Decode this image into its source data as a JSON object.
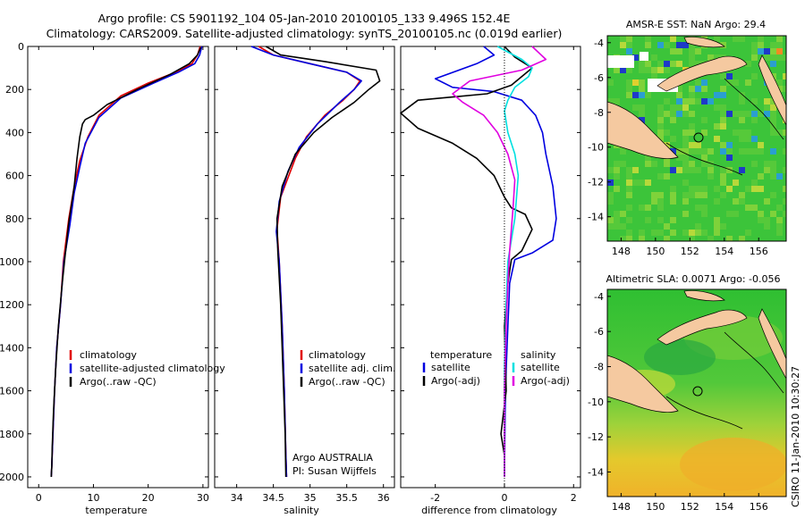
{
  "header": {
    "line1": "Argo profile: CS 5901192_104 05-Jan-2010 20100105_133 9.496S 152.4E",
    "line2": "Climatology: CARS2009. Satellite-adjusted climatology: synTS_20100105.nc (0.019d earlier)"
  },
  "side_label": "CSIRO 11-Jan-2010 10:30:27",
  "colors": {
    "red": "#e00000",
    "blue": "#0000e0",
    "black": "#000000",
    "cyan": "#00e0e0",
    "magenta": "#e000e0"
  },
  "panels": {
    "temperature": {
      "xlabel": "temperature",
      "legend": [
        "climatology",
        "satellite-adjusted climatology",
        "Argo(..raw -QC)"
      ]
    },
    "salinity": {
      "xlabel": "salinity",
      "legend": [
        "climatology",
        "satellite adj. clim.",
        "Argo(..raw -QC)"
      ],
      "note1": "Argo AUSTRALIA",
      "note2": "PI: Susan Wijffels"
    },
    "difference": {
      "xlabel": "difference from climatology",
      "legend_head_left": "temperature",
      "legend_head_right": "salinity",
      "legend_left": [
        "satellite",
        "Argo(-adj)"
      ],
      "legend_right": [
        "satellite",
        "Argo(-adj)"
      ]
    }
  },
  "maps": {
    "sst": {
      "title": "AMSR-E SST: NaN Argo: 29.4"
    },
    "sla": {
      "title": "Altimetric SLA: 0.0071 Argo: -0.056"
    }
  },
  "chart_data": [
    {
      "type": "line",
      "name": "temperature",
      "xlabel": "temperature",
      "ylabel": "",
      "xlim": [
        -2,
        31
      ],
      "ylim": [
        2050,
        0
      ],
      "xticks": [
        0,
        10,
        20,
        30
      ],
      "yticks": [
        0,
        200,
        400,
        600,
        800,
        1000,
        1200,
        1400,
        1600,
        1800,
        2000
      ],
      "legend_location": "lower-right",
      "series": [
        {
          "name": "climatology",
          "color": "#e00000",
          "x": [
            29.5,
            29,
            28,
            25,
            20,
            15,
            11,
            9,
            7.5,
            6.5,
            5.5,
            4.5,
            4,
            3.3,
            2.9,
            2.6,
            2.4,
            2.3
          ],
          "y": [
            0,
            40,
            80,
            120,
            170,
            230,
            320,
            420,
            530,
            650,
            800,
            1000,
            1200,
            1400,
            1600,
            1800,
            1950,
            2000
          ]
        },
        {
          "name": "satellite-adjusted climatology",
          "color": "#0000e0",
          "x": [
            29.8,
            29.4,
            28.5,
            25.5,
            21,
            15,
            11,
            8.5,
            7.5,
            6.5,
            5.7,
            4.6,
            4,
            3.3,
            2.9,
            2.6,
            2.4,
            2.3
          ],
          "y": [
            0,
            40,
            80,
            120,
            170,
            240,
            330,
            450,
            560,
            680,
            830,
            1000,
            1200,
            1400,
            1600,
            1800,
            1950,
            2000
          ]
        },
        {
          "name": "Argo(..raw -QC)",
          "color": "#000000",
          "x": [
            29.6,
            29,
            27.5,
            24,
            18,
            12.5,
            10,
            8.5,
            8,
            7.5,
            7,
            6.5,
            5.5,
            4.8,
            4.3,
            3.6,
            3.1,
            2.7,
            2.5,
            2.4,
            2.3
          ],
          "y": [
            5,
            40,
            80,
            130,
            200,
            270,
            320,
            340,
            360,
            420,
            520,
            650,
            820,
            980,
            1100,
            1300,
            1500,
            1700,
            1850,
            1950,
            2000
          ]
        }
      ]
    },
    {
      "type": "line",
      "name": "salinity",
      "xlabel": "salinity",
      "ylabel": "",
      "xlim": [
        33.7,
        36.15
      ],
      "ylim": [
        2050,
        0
      ],
      "xticks": [
        34,
        34.5,
        35,
        35.5,
        36
      ],
      "legend_location": "lower-right",
      "series": [
        {
          "name": "climatology",
          "color": "#e00000",
          "x": [
            34.3,
            34.5,
            35,
            35.5,
            35.68,
            35.6,
            35.45,
            35.2,
            34.95,
            34.8,
            34.6,
            34.55,
            34.58,
            34.62,
            34.65,
            34.67,
            34.68
          ],
          "y": [
            0,
            40,
            80,
            120,
            160,
            200,
            250,
            320,
            420,
            520,
            700,
            850,
            1000,
            1300,
            1600,
            1900,
            2000
          ]
        },
        {
          "name": "satellite adj. clim.",
          "color": "#0000e0",
          "x": [
            34.2,
            34.5,
            35,
            35.5,
            35.7,
            35.6,
            35.4,
            35.1,
            34.85,
            34.7,
            34.58,
            34.54,
            34.58,
            34.62,
            34.65,
            34.67,
            34.68
          ],
          "y": [
            0,
            40,
            80,
            120,
            160,
            200,
            260,
            360,
            470,
            580,
            720,
            860,
            1000,
            1300,
            1600,
            1900,
            2000
          ]
        },
        {
          "name": "Argo(..raw -QC)",
          "color": "#000000",
          "x": [
            34.4,
            34.6,
            35.2,
            35.9,
            35.95,
            35.8,
            35.6,
            35.3,
            35.05,
            34.8,
            34.62,
            34.55,
            34.56,
            34.6,
            34.63,
            34.66,
            34.67
          ],
          "y": [
            0,
            40,
            70,
            110,
            160,
            200,
            260,
            330,
            400,
            500,
            650,
            800,
            950,
            1200,
            1500,
            1800,
            2000
          ]
        }
      ]
    },
    {
      "type": "line",
      "name": "difference",
      "xlabel": "difference from climatology",
      "ylabel": "",
      "xlim": [
        -3,
        2.2
      ],
      "ylim": [
        2050,
        0
      ],
      "xticks": [
        -2,
        0,
        2
      ],
      "legend_location": "lower-right",
      "series": [
        {
          "name": "temperature satellite",
          "color": "#0000e0",
          "x": [
            -0.6,
            -0.3,
            -0.8,
            -2.0,
            -1.5,
            -0.3,
            0.5,
            0.9,
            1.1,
            1.2,
            1.4,
            1.5,
            1.4,
            0.8,
            0.3,
            0.15,
            0.1,
            0.05,
            0.02,
            0.0
          ],
          "y": [
            0,
            40,
            80,
            150,
            190,
            210,
            250,
            320,
            400,
            500,
            650,
            800,
            900,
            960,
            990,
            1100,
            1300,
            1500,
            1700,
            2000
          ]
        },
        {
          "name": "temperature Argo(-adj)",
          "color": "#000000",
          "x": [
            0.0,
            0.3,
            0.8,
            0.5,
            0.2,
            -0.5,
            -2.5,
            -3.0,
            -2.5,
            -1.5,
            -0.8,
            -0.3,
            0.0,
            0.2,
            0.6,
            0.8,
            0.5,
            0.2,
            0.1,
            0.0,
            0.05,
            -0.1,
            0.0,
            0.0
          ],
          "y": [
            0,
            50,
            100,
            140,
            180,
            220,
            250,
            310,
            380,
            450,
            520,
            600,
            700,
            750,
            780,
            850,
            950,
            990,
            1100,
            1300,
            1600,
            1800,
            1900,
            2000
          ]
        },
        {
          "name": "salinity satellite",
          "color": "#00e0e0",
          "x": [
            -0.2,
            0.5,
            0.8,
            0.7,
            0.3,
            0.1,
            0.0,
            0.1,
            0.3,
            0.4,
            0.35,
            0.3,
            0.2,
            0.1,
            0.05,
            0.0,
            0.0,
            0.0
          ],
          "y": [
            0,
            60,
            100,
            140,
            190,
            250,
            300,
            400,
            500,
            600,
            700,
            800,
            900,
            1000,
            1200,
            1500,
            1800,
            2000
          ]
        },
        {
          "name": "salinity Argo(-adj)",
          "color": "#e000e0",
          "x": [
            0.8,
            1.2,
            0.5,
            -1.0,
            -1.5,
            -1.2,
            -0.6,
            -0.2,
            0.1,
            0.3,
            0.25,
            0.2,
            0.15,
            0.1,
            0.05,
            0.0,
            0.0
          ],
          "y": [
            0,
            60,
            110,
            160,
            220,
            260,
            320,
            400,
            500,
            620,
            750,
            850,
            950,
            1100,
            1300,
            1600,
            2000
          ]
        }
      ]
    }
  ]
}
